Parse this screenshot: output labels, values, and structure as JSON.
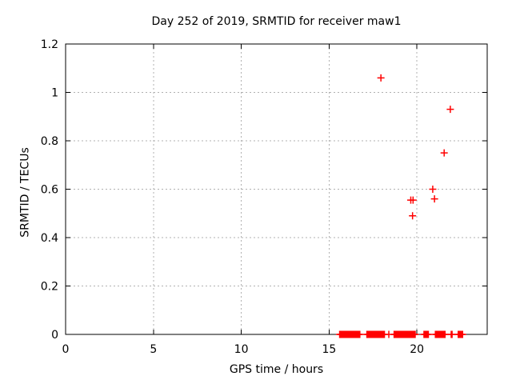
{
  "title": "Day 252 of 2019, SRMTID for receiver maw1",
  "colors": {
    "marker": "#ff0000",
    "grid": "#b0b0b0",
    "axis": "#000000",
    "text": "#000000",
    "background": "#ffffff"
  },
  "chart_data": {
    "type": "scatter",
    "title": "Day 252 of 2019, SRMTID for receiver maw1",
    "xlabel": "GPS time / hours",
    "ylabel": "SRMTID / TECUs",
    "xlim": [
      0,
      24
    ],
    "ylim": [
      0,
      1.2
    ],
    "xticks": [
      0,
      5,
      10,
      15,
      20
    ],
    "xtick_labels": [
      "0",
      "5",
      "10",
      "15",
      "20"
    ],
    "yticks": [
      0,
      0.2,
      0.4,
      0.6,
      0.8,
      1,
      1.2
    ],
    "ytick_labels": [
      "0",
      "0.2",
      "0.4",
      "0.6",
      "0.8",
      "1",
      "1.2"
    ],
    "grid": true,
    "legend": "none",
    "marker": "plus",
    "marker_color": "#ff0000",
    "points": [
      {
        "x": 17.95,
        "y": 1.06
      },
      {
        "x": 21.9,
        "y": 0.93
      },
      {
        "x": 21.55,
        "y": 0.75
      },
      {
        "x": 20.9,
        "y": 0.6
      },
      {
        "x": 21.0,
        "y": 0.56
      },
      {
        "x": 19.65,
        "y": 0.555
      },
      {
        "x": 19.78,
        "y": 0.555
      },
      {
        "x": 19.75,
        "y": 0.49
      }
    ],
    "zero_band_y": 0,
    "zero_band_step_hours": 0.05,
    "zero_band_segments": [
      [
        15.6,
        16.75
      ],
      [
        17.15,
        18.15
      ],
      [
        18.4,
        18.4
      ],
      [
        18.7,
        19.9
      ],
      [
        20.4,
        20.65
      ],
      [
        21.05,
        21.6
      ],
      [
        21.95,
        22.0
      ],
      [
        22.35,
        22.6
      ]
    ]
  }
}
